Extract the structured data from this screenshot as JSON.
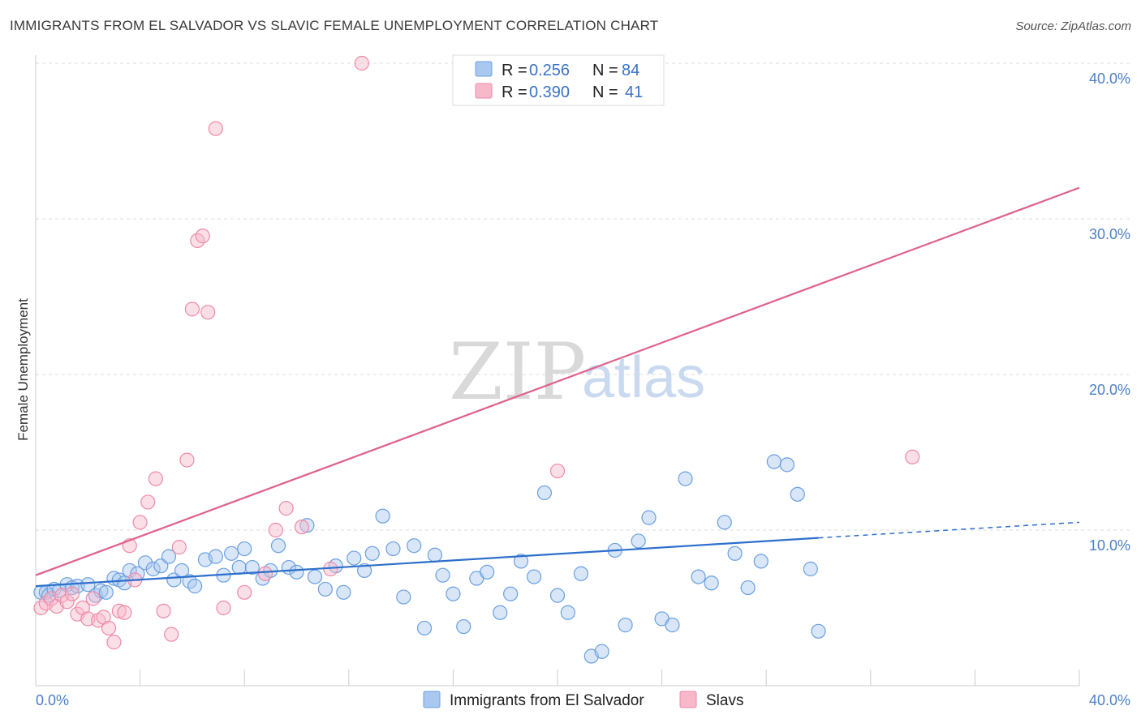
{
  "header": {
    "title": "IMMIGRANTS FROM EL SALVADOR VS SLAVIC FEMALE UNEMPLOYMENT CORRELATION CHART",
    "source": "Source: ZipAtlas.com"
  },
  "watermark": {
    "zip": "ZIP",
    "atlas": "atlas"
  },
  "legend": {
    "r_label": "R =",
    "n_label": "N =",
    "rows": [
      {
        "r": "0.256",
        "n": "84",
        "color": "#a9c8f0"
      },
      {
        "r": "0.390",
        "n": "41",
        "color": "#f7b8ca"
      }
    ]
  },
  "chart_data": {
    "type": "scatter",
    "ylabel": "Female Unemployment",
    "xlabel": "",
    "xlim": [
      0,
      40
    ],
    "ylim": [
      0,
      40
    ],
    "x_tick_labels": [
      "0.0%",
      "40.0%"
    ],
    "y_ticks": [
      10,
      20,
      30,
      40
    ],
    "y_tick_labels": [
      "10.0%",
      "20.0%",
      "30.0%",
      "40.0%"
    ],
    "grid": true,
    "legend_position": "top-center",
    "series": [
      {
        "name": "Immigrants from El Salvador",
        "color": "#6aa0e0",
        "fill": "#a9c8f0",
        "line_color": "#2d6fcc",
        "trend": {
          "x0": 0,
          "y0": 6.4,
          "x1": 30,
          "y1": 9.5,
          "dash_x1": 40,
          "dash_y1": 10.5
        },
        "points": [
          [
            0.2,
            6.0
          ],
          [
            0.4,
            6.0
          ],
          [
            0.5,
            5.8
          ],
          [
            0.7,
            6.2
          ],
          [
            0.9,
            6.1
          ],
          [
            1.2,
            6.5
          ],
          [
            1.4,
            6.3
          ],
          [
            1.6,
            6.4
          ],
          [
            2.0,
            6.5
          ],
          [
            2.3,
            5.8
          ],
          [
            2.5,
            6.1
          ],
          [
            2.7,
            6.0
          ],
          [
            3.0,
            6.9
          ],
          [
            3.2,
            6.8
          ],
          [
            3.4,
            6.6
          ],
          [
            3.6,
            7.4
          ],
          [
            3.9,
            7.2
          ],
          [
            4.2,
            7.9
          ],
          [
            4.5,
            7.5
          ],
          [
            4.8,
            7.7
          ],
          [
            5.1,
            8.3
          ],
          [
            5.3,
            6.8
          ],
          [
            5.6,
            7.4
          ],
          [
            5.9,
            6.7
          ],
          [
            6.1,
            6.4
          ],
          [
            6.5,
            8.1
          ],
          [
            6.9,
            8.3
          ],
          [
            7.2,
            7.1
          ],
          [
            7.5,
            8.5
          ],
          [
            7.8,
            7.6
          ],
          [
            8.0,
            8.8
          ],
          [
            8.3,
            7.6
          ],
          [
            8.7,
            6.9
          ],
          [
            9.0,
            7.4
          ],
          [
            9.3,
            9.0
          ],
          [
            9.7,
            7.6
          ],
          [
            10.0,
            7.3
          ],
          [
            10.4,
            10.3
          ],
          [
            10.7,
            7.0
          ],
          [
            11.1,
            6.2
          ],
          [
            11.5,
            7.7
          ],
          [
            11.8,
            6.0
          ],
          [
            12.2,
            8.2
          ],
          [
            12.6,
            7.4
          ],
          [
            12.9,
            8.5
          ],
          [
            13.3,
            10.9
          ],
          [
            13.7,
            8.8
          ],
          [
            14.1,
            5.7
          ],
          [
            14.5,
            9.0
          ],
          [
            14.9,
            3.7
          ],
          [
            15.3,
            8.4
          ],
          [
            15.6,
            7.1
          ],
          [
            16.0,
            5.9
          ],
          [
            16.4,
            3.8
          ],
          [
            16.9,
            6.9
          ],
          [
            17.3,
            7.3
          ],
          [
            17.8,
            4.7
          ],
          [
            18.2,
            5.9
          ],
          [
            18.6,
            8.0
          ],
          [
            19.1,
            7.0
          ],
          [
            19.5,
            12.4
          ],
          [
            20.0,
            5.8
          ],
          [
            20.4,
            4.7
          ],
          [
            20.9,
            7.2
          ],
          [
            21.3,
            1.9
          ],
          [
            21.7,
            2.2
          ],
          [
            22.2,
            8.7
          ],
          [
            22.6,
            3.9
          ],
          [
            23.1,
            9.3
          ],
          [
            23.5,
            10.8
          ],
          [
            24.0,
            4.3
          ],
          [
            24.4,
            3.9
          ],
          [
            24.9,
            13.3
          ],
          [
            25.4,
            7.0
          ],
          [
            25.9,
            6.6
          ],
          [
            26.4,
            10.5
          ],
          [
            26.8,
            8.5
          ],
          [
            27.3,
            6.3
          ],
          [
            27.8,
            8.0
          ],
          [
            28.3,
            14.4
          ],
          [
            28.8,
            14.2
          ],
          [
            29.2,
            12.3
          ],
          [
            29.7,
            7.5
          ],
          [
            30.0,
            3.5
          ]
        ]
      },
      {
        "name": "Slavs",
        "color": "#ee8aa8",
        "fill": "#f7b8ca",
        "line_color": "#e0608a",
        "trend": {
          "x0": 0,
          "y0": 7.1,
          "x1": 40,
          "y1": 32.0
        },
        "points": [
          [
            0.2,
            5.0
          ],
          [
            0.4,
            5.3
          ],
          [
            0.6,
            5.6
          ],
          [
            0.8,
            5.1
          ],
          [
            1.0,
            5.8
          ],
          [
            1.2,
            5.4
          ],
          [
            1.4,
            5.9
          ],
          [
            1.6,
            4.6
          ],
          [
            1.8,
            5.0
          ],
          [
            2.0,
            4.3
          ],
          [
            2.2,
            5.6
          ],
          [
            2.4,
            4.2
          ],
          [
            2.6,
            4.4
          ],
          [
            2.8,
            3.7
          ],
          [
            3.0,
            2.8
          ],
          [
            3.2,
            4.8
          ],
          [
            3.4,
            4.7
          ],
          [
            3.6,
            9.0
          ],
          [
            3.8,
            6.8
          ],
          [
            4.0,
            10.5
          ],
          [
            4.3,
            11.8
          ],
          [
            4.6,
            13.3
          ],
          [
            4.9,
            4.8
          ],
          [
            5.2,
            3.3
          ],
          [
            5.5,
            8.9
          ],
          [
            5.8,
            14.5
          ],
          [
            6.0,
            24.2
          ],
          [
            6.2,
            28.6
          ],
          [
            6.4,
            28.9
          ],
          [
            6.6,
            24.0
          ],
          [
            6.9,
            35.8
          ],
          [
            7.2,
            5.0
          ],
          [
            8.0,
            6.0
          ],
          [
            8.8,
            7.2
          ],
          [
            9.2,
            10.0
          ],
          [
            9.6,
            11.4
          ],
          [
            10.2,
            10.2
          ],
          [
            11.3,
            7.5
          ],
          [
            12.5,
            40.0
          ],
          [
            20.0,
            13.8
          ],
          [
            33.6,
            14.7
          ]
        ]
      }
    ]
  }
}
